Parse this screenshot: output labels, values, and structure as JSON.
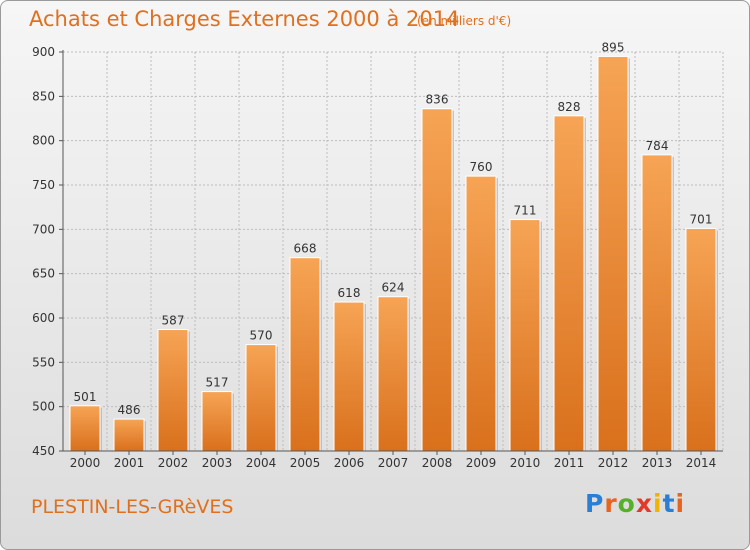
{
  "header": {
    "title": "Achats et Charges Externes 2000 à 2014",
    "subtitle": "(en milliers d'€)"
  },
  "footer": {
    "town": "PLESTIN-LES-GRèVES",
    "logo_letters": [
      "P",
      "r",
      "o",
      "x",
      "i",
      "t",
      "i"
    ],
    "logo_colors": [
      "#2a7fd4",
      "#e8641e",
      "#57b02b",
      "#e23a2a",
      "#f0b400",
      "#2a7fd4",
      "#e8641e"
    ]
  },
  "chart_data": {
    "type": "bar",
    "title": "Achats et Charges Externes 2000 à 2014",
    "subtitle": "(en milliers d'€)",
    "categories": [
      "2000",
      "2001",
      "2002",
      "2003",
      "2004",
      "2005",
      "2006",
      "2007",
      "2008",
      "2009",
      "2010",
      "2011",
      "2012",
      "2013",
      "2014"
    ],
    "values": [
      501,
      486,
      587,
      517,
      570,
      668,
      618,
      624,
      836,
      760,
      711,
      828,
      895,
      784,
      701
    ],
    "ylim": [
      450,
      900
    ],
    "yticks": [
      450,
      500,
      550,
      600,
      650,
      700,
      750,
      800,
      850,
      900
    ],
    "grid": true,
    "bar_color": "#f0913a"
  }
}
